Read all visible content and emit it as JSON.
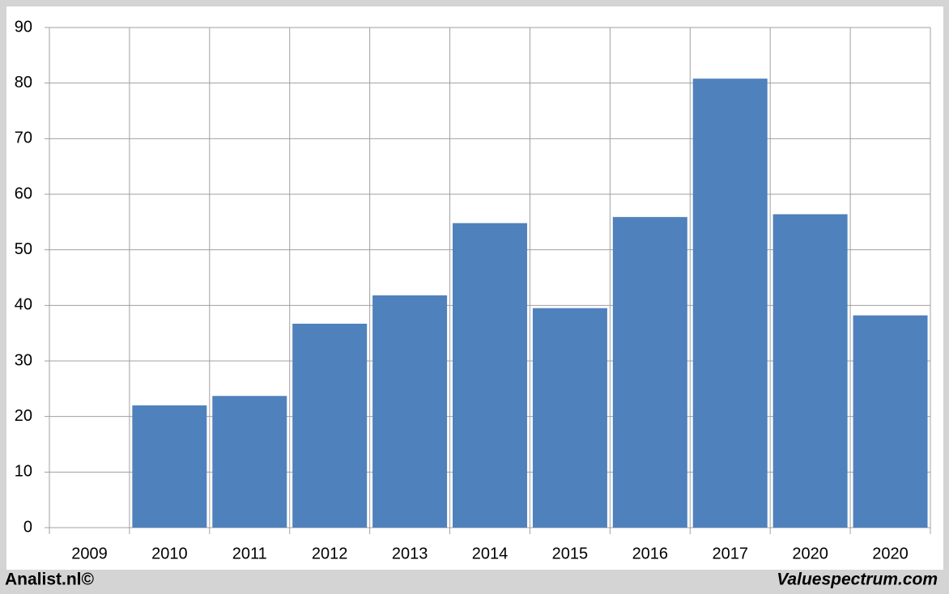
{
  "chart_data": {
    "type": "bar",
    "categories": [
      "2009",
      "2010",
      "2011",
      "2012",
      "2013",
      "2014",
      "2015",
      "2016",
      "2017",
      "2020",
      "2020"
    ],
    "values": [
      null,
      22.0,
      23.7,
      36.7,
      41.8,
      54.8,
      39.5,
      55.9,
      80.8,
      56.4,
      38.2
    ],
    "color": "#4f81bd",
    "ylim": [
      0,
      90
    ],
    "yticks": [
      0,
      10,
      20,
      30,
      40,
      50,
      60,
      70,
      80,
      90
    ],
    "grid": true,
    "footer_left": "Analist.nl©",
    "footer_right": "Valuespectrum.com"
  }
}
